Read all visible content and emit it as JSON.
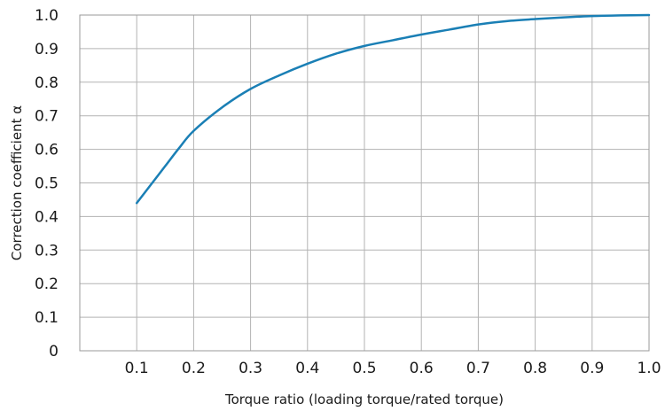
{
  "chart_data": {
    "type": "line",
    "title": "",
    "xlabel": "Torque ratio (loading torque/rated torque)",
    "ylabel": "Correction coefficient α",
    "xlim": [
      0,
      1.0
    ],
    "ylim": [
      0,
      1.0
    ],
    "x_ticks": [
      0.1,
      0.2,
      0.3,
      0.4,
      0.5,
      0.6,
      0.7,
      0.8,
      0.9,
      1.0
    ],
    "x_tick_labels": [
      "0.1",
      "0.2",
      "0.3",
      "0.4",
      "0.5",
      "0.6",
      "0.7",
      "0.8",
      "0.9",
      "1.0"
    ],
    "y_ticks": [
      0,
      0.1,
      0.2,
      0.3,
      0.4,
      0.5,
      0.6,
      0.7,
      0.8,
      0.9,
      1.0
    ],
    "y_tick_labels": [
      "0",
      "0.1",
      "0.2",
      "0.3",
      "0.4",
      "0.5",
      "0.6",
      "0.7",
      "0.8",
      "0.9",
      "1.0"
    ],
    "grid": true,
    "series": [
      {
        "color": "#1a7fb5",
        "x": [
          0.1,
          0.125,
          0.15,
          0.175,
          0.2,
          0.25,
          0.3,
          0.35,
          0.4,
          0.45,
          0.5,
          0.55,
          0.6,
          0.65,
          0.7,
          0.75,
          0.8,
          0.85,
          0.9,
          0.95,
          1.0
        ],
        "y": [
          0.44,
          0.495,
          0.55,
          0.605,
          0.655,
          0.725,
          0.78,
          0.82,
          0.855,
          0.885,
          0.908,
          0.925,
          0.942,
          0.957,
          0.972,
          0.982,
          0.988,
          0.993,
          0.997,
          0.999,
          1.0
        ]
      }
    ]
  }
}
